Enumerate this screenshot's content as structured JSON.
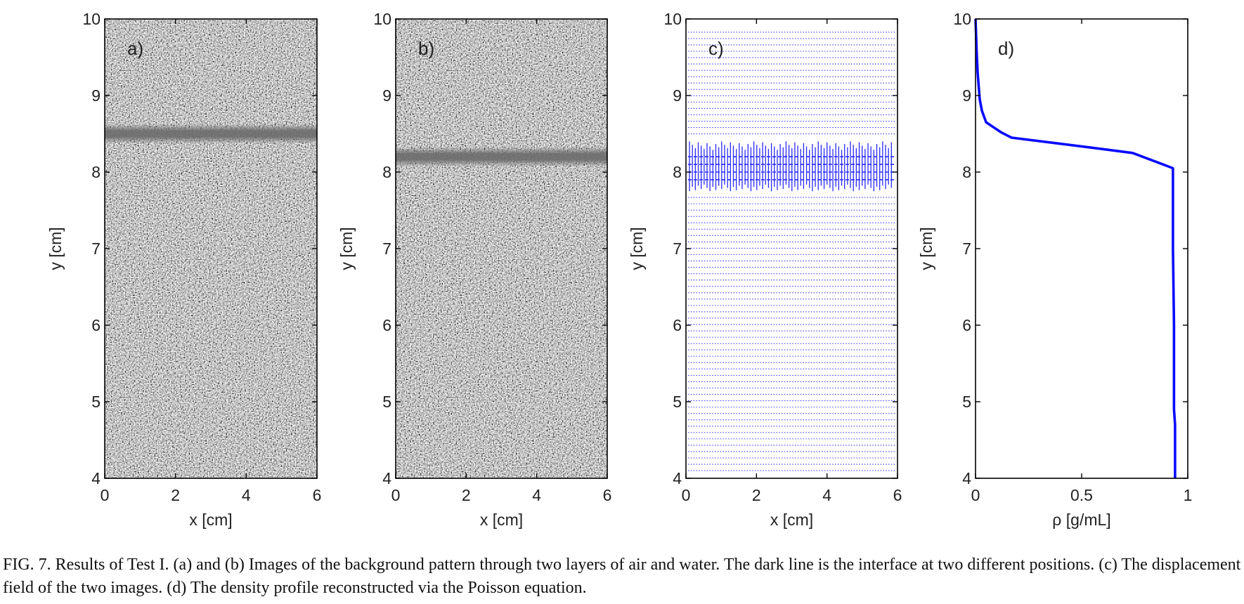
{
  "chart_data": [
    {
      "panel_label": "a)",
      "type": "image",
      "image_description": "speckle background pattern",
      "interface_y": 8.5,
      "xlabel": "x [cm]",
      "ylabel": "y [cm]",
      "xlim": [
        0,
        6
      ],
      "ylim": [
        4,
        10
      ],
      "xticks": [
        0,
        2,
        4,
        6
      ],
      "xtick_labels": [
        "0",
        "2",
        "4",
        "6"
      ],
      "yticks": [
        4,
        5,
        6,
        7,
        8,
        9,
        10
      ],
      "ytick_labels": [
        "4",
        "5",
        "6",
        "7",
        "8",
        "9",
        "10"
      ]
    },
    {
      "panel_label": "b)",
      "type": "image",
      "image_description": "speckle background pattern",
      "interface_y": 8.2,
      "xlabel": "x [cm]",
      "ylabel": "y [cm]",
      "xlim": [
        0,
        6
      ],
      "ylim": [
        4,
        10
      ],
      "xticks": [
        0,
        2,
        4,
        6
      ],
      "xtick_labels": [
        "0",
        "2",
        "4",
        "6"
      ],
      "yticks": [
        4,
        5,
        6,
        7,
        8,
        9,
        10
      ],
      "ytick_labels": [
        "4",
        "5",
        "6",
        "7",
        "8",
        "9",
        "10"
      ]
    },
    {
      "panel_label": "c)",
      "type": "quiver",
      "grid_rows_y": {
        "start": 4.1,
        "end": 9.9,
        "step": 0.083
      },
      "grid_cols_x": {
        "start": 0.1,
        "end": 5.9,
        "step": 0.083
      },
      "displacement_band_y": [
        7.75,
        8.4
      ],
      "color": "#2929ff",
      "xlabel": "x [cm]",
      "ylabel": "y [cm]",
      "xlim": [
        0,
        6
      ],
      "ylim": [
        4,
        10
      ],
      "xticks": [
        0,
        2,
        4,
        6
      ],
      "xtick_labels": [
        "0",
        "2",
        "4",
        "6"
      ],
      "yticks": [
        4,
        5,
        6,
        7,
        8,
        9,
        10
      ],
      "ytick_labels": [
        "4",
        "5",
        "6",
        "7",
        "8",
        "9",
        "10"
      ]
    },
    {
      "panel_label": "d)",
      "type": "line",
      "series": [
        {
          "color": "#0a0aff",
          "x": [
            0.94,
            0.94,
            0.935,
            0.935,
            0.93,
            0.93,
            0.74,
            0.6,
            0.4,
            0.17,
            0.12,
            0.05,
            0.03,
            0.02,
            0.01,
            0.005,
            0.0
          ],
          "y": [
            4.0,
            4.7,
            4.9,
            6.0,
            7.0,
            8.05,
            8.25,
            8.3,
            8.37,
            8.45,
            8.52,
            8.65,
            8.8,
            8.95,
            9.3,
            9.6,
            10.0
          ]
        }
      ],
      "xlabel": "ρ [g/mL]",
      "ylabel": "y [cm]",
      "xlim": [
        0,
        1
      ],
      "ylim": [
        4,
        10
      ],
      "xticks": [
        0,
        0.5,
        1
      ],
      "xtick_labels": [
        "0",
        "0.5",
        "1"
      ],
      "yticks": [
        4,
        5,
        6,
        7,
        8,
        9,
        10
      ],
      "ytick_labels": [
        "4",
        "5",
        "6",
        "7",
        "8",
        "9",
        "10"
      ]
    }
  ],
  "caption": {
    "text": "FIG. 7.  Results of Test I. (a) and (b) Images of the background pattern through two layers of air and water. The dark line is the interface at two different positions. (c) The displacement field of the two images. (d) The density profile reconstructed via the Poisson equation."
  }
}
